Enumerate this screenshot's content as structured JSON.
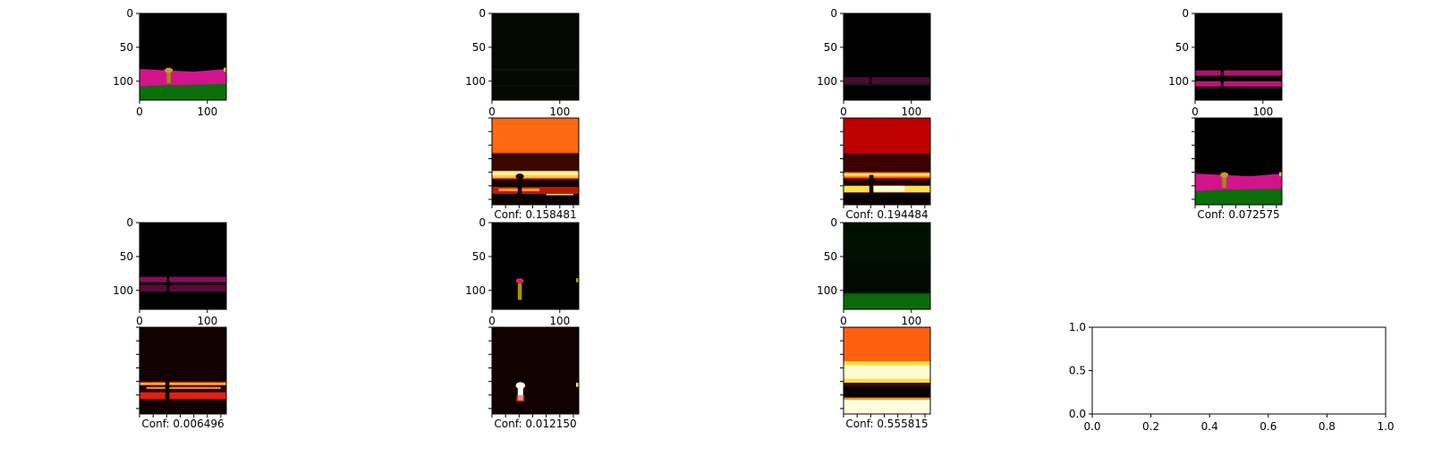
{
  "chart_data": {
    "type": "image-grid",
    "rows": 4,
    "cols": 4,
    "panels": [
      {
        "row": 0,
        "col": 0,
        "kind": "segmentation",
        "tint": "#1a0000",
        "axes": true,
        "xticks": [
          "0",
          "100"
        ],
        "yticks": [
          "0",
          "50",
          "100"
        ],
        "caption": ""
      },
      {
        "row": 0,
        "col": 1,
        "kind": "channel-green",
        "tint": "#0a1000",
        "axes": true,
        "xticks": [
          "0",
          "100"
        ],
        "yticks": [
          "0",
          "50",
          "100"
        ],
        "caption": ""
      },
      {
        "row": 0,
        "col": 2,
        "kind": "channel-magenta-thin",
        "tint": "#050005",
        "axes": true,
        "xticks": [
          "0",
          "100"
        ],
        "yticks": [
          "0",
          "50",
          "100"
        ],
        "caption": ""
      },
      {
        "row": 0,
        "col": 3,
        "kind": "channel-magenta-double",
        "tint": "#000000",
        "axes": true,
        "xticks": [
          "0",
          "100"
        ],
        "yticks": [
          "0",
          "50",
          "100"
        ],
        "caption": ""
      },
      {
        "row": 1,
        "col": 0,
        "kind": "empty-hidden",
        "axes": false,
        "caption": ""
      },
      {
        "row": 1,
        "col": 1,
        "kind": "heatmap-orange",
        "axes": true,
        "caption": "Conf: 0.158481",
        "ticksNoLabels": true
      },
      {
        "row": 1,
        "col": 2,
        "kind": "heatmap-red",
        "axes": true,
        "caption": "Conf: 0.194484",
        "ticksNoLabels": true
      },
      {
        "row": 1,
        "col": 3,
        "kind": "segmentation",
        "axes": true,
        "caption": "Conf: 0.072575",
        "ticksNoLabels": true
      },
      {
        "row": 2,
        "col": 0,
        "kind": "channel-magenta-wide",
        "axes": true,
        "xticks": [
          "0",
          "100"
        ],
        "yticks": [
          "0",
          "50",
          "100"
        ],
        "caption": ""
      },
      {
        "row": 2,
        "col": 1,
        "kind": "channel-yellow-pole",
        "axes": true,
        "xticks": [
          "0",
          "100"
        ],
        "yticks": [
          "0",
          "50",
          "100"
        ],
        "caption": ""
      },
      {
        "row": 2,
        "col": 2,
        "kind": "channel-green-floor",
        "axes": true,
        "xticks": [
          "0",
          "100"
        ],
        "yticks": [
          "0",
          "50",
          "100"
        ],
        "caption": ""
      },
      {
        "row": 2,
        "col": 3,
        "kind": "empty-hidden",
        "axes": false,
        "caption": ""
      },
      {
        "row": 3,
        "col": 0,
        "kind": "heatmap-dark-bands",
        "axes": true,
        "caption": "Conf: 0.006496",
        "ticksNoLabels": true
      },
      {
        "row": 3,
        "col": 1,
        "kind": "heatmap-dark-pole",
        "axes": true,
        "caption": "Conf: 0.012150",
        "ticksNoLabels": true
      },
      {
        "row": 3,
        "col": 2,
        "kind": "heatmap-bright",
        "axes": true,
        "caption": "Conf: 0.555815",
        "ticksNoLabels": true
      },
      {
        "row": 3,
        "col": 3,
        "kind": "empty-axes",
        "axes": true,
        "xlim": [
          0.0,
          1.0
        ],
        "ylim": [
          0.0,
          1.0
        ],
        "xticks": [
          "0.0",
          "0.2",
          "0.4",
          "0.6",
          "0.8",
          "1.0"
        ],
        "yticks": [
          "0.0",
          "0.5",
          "1.0"
        ],
        "caption": ""
      }
    ]
  }
}
